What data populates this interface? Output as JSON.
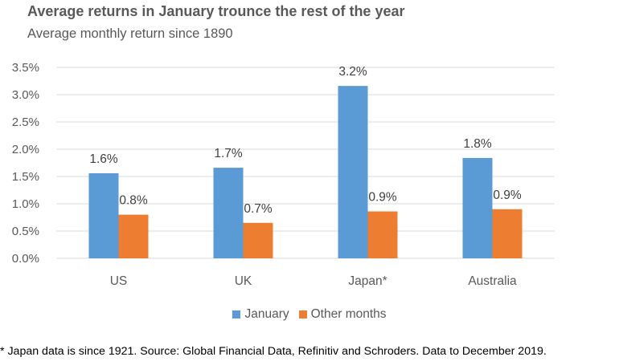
{
  "chart_data": {
    "type": "bar",
    "title": "Average returns in January trounce the rest of the year",
    "subtitle": "Average monthly return since 1890",
    "categories": [
      "US",
      "UK",
      "Japan*",
      "Australia"
    ],
    "series": [
      {
        "name": "January",
        "values": [
          1.56,
          1.66,
          3.16,
          1.84
        ],
        "labels": [
          "1.6%",
          "1.7%",
          "3.2%",
          "1.8%"
        ],
        "color": "#5B9BD5"
      },
      {
        "name": "Other months",
        "values": [
          0.8,
          0.65,
          0.86,
          0.9
        ],
        "labels": [
          "0.8%",
          "0.7%",
          "0.9%",
          "0.9%"
        ],
        "color": "#ED7D31"
      }
    ],
    "ylim": [
      0,
      3.5
    ],
    "yticks": [
      "0.0%",
      "0.5%",
      "1.0%",
      "1.5%",
      "2.0%",
      "2.5%",
      "3.0%",
      "3.5%"
    ],
    "grid": true,
    "legend_position": "bottom"
  },
  "footnote": "* Japan data is since 1921. Source: Global Financial Data, Refinitiv and Schroders. Data to December 2019."
}
